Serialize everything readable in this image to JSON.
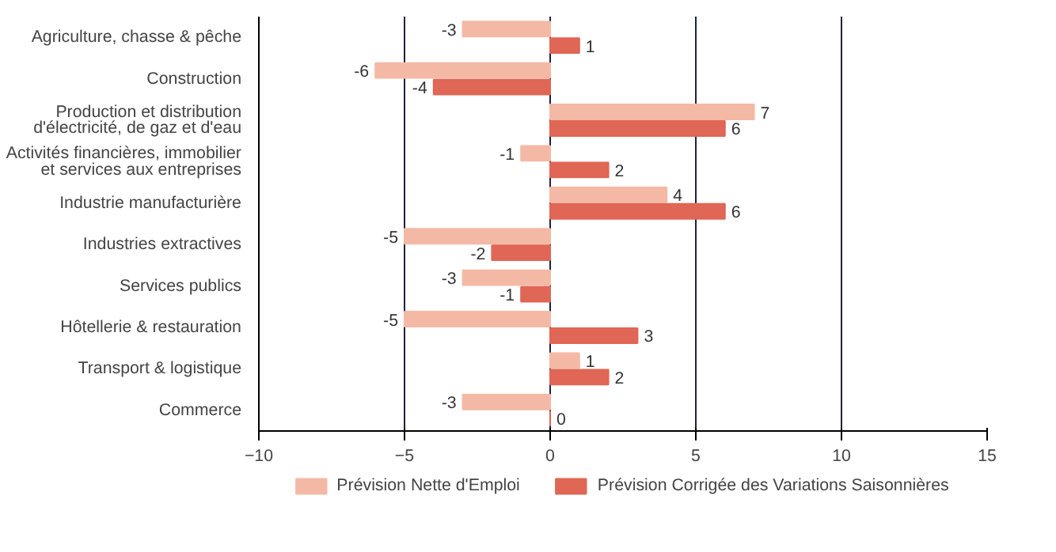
{
  "chart_data": {
    "type": "bar",
    "orientation": "horizontal",
    "categories": [
      "Agriculture, chasse & pêche",
      "Construction",
      "Production et distribution d'électricité, de gaz et d'eau",
      "Activités financières, immobilier et services aux entreprises",
      "Industrie manufacturière",
      "Industries extractives",
      "Services publics",
      "Hôtellerie & restauration",
      "Transport & logistique",
      "Commerce"
    ],
    "series": [
      {
        "name": "Prévision Nette d'Emploi",
        "color": "#f4b9a5",
        "values": [
          -3,
          -6,
          7,
          -1,
          4,
          -5,
          -3,
          -5,
          1,
          -3
        ]
      },
      {
        "name": "Prévision Corrigée des Variations Saisonnières",
        "color": "#e06655",
        "values": [
          1,
          -4,
          6,
          2,
          6,
          -2,
          -1,
          3,
          2,
          0
        ]
      }
    ],
    "xlim": [
      -10,
      15
    ],
    "xticks": [
      -10,
      -5,
      0,
      5,
      10,
      15
    ],
    "grid": "x",
    "legend": "bottom",
    "data_labels": true
  }
}
